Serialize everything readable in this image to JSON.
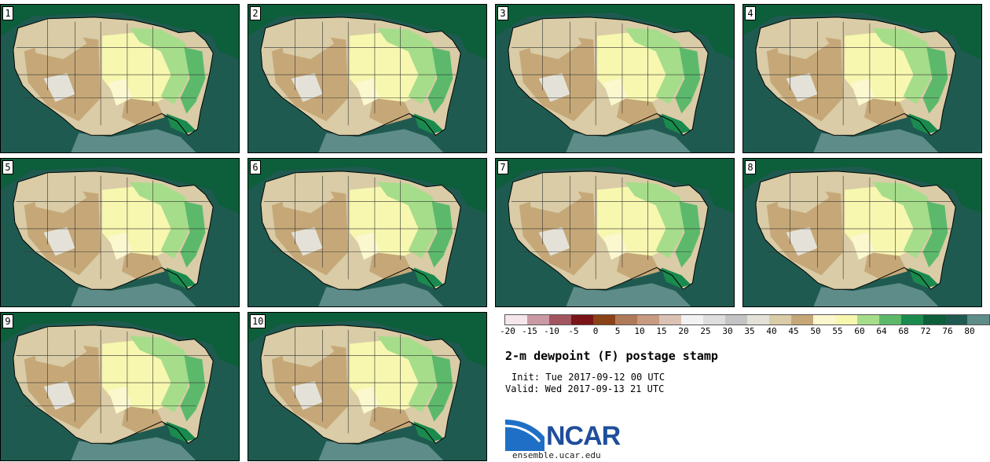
{
  "panels": [
    {
      "label": "1"
    },
    {
      "label": "2"
    },
    {
      "label": "3"
    },
    {
      "label": "4"
    },
    {
      "label": "5"
    },
    {
      "label": "6"
    },
    {
      "label": "7"
    },
    {
      "label": "8"
    },
    {
      "label": "9"
    },
    {
      "label": "10"
    }
  ],
  "legend": {
    "colors": [
      "#f5e6ec",
      "#c99aa3",
      "#a2555f",
      "#7a1418",
      "#8a4216",
      "#b07a5a",
      "#c89a82",
      "#dcc2b4",
      "#f2f2f2",
      "#dedede",
      "#c4c4c4",
      "#e4e2d8",
      "#d9cca6",
      "#c6a878",
      "#fbf7cf",
      "#f7f7b0",
      "#a6dd8a",
      "#5cb96b",
      "#1a8a4e",
      "#0d5e3a",
      "#1f5a50",
      "#5e8c88"
    ],
    "ticks": [
      "-20",
      "-15",
      "-10",
      "-5",
      "0",
      "5",
      "10",
      "15",
      "20",
      "25",
      "30",
      "35",
      "40",
      "45",
      "50",
      "55",
      "60",
      "64",
      "68",
      "72",
      "76",
      "80"
    ]
  },
  "title": "2-m dewpoint (F) postage stamp",
  "init": "Init: Tue 2017-09-12 00 UTC",
  "valid": "Valid: Wed 2017-09-13 21 UTC",
  "logo_text": "NCAR",
  "site": "ensemble.ucar.edu"
}
